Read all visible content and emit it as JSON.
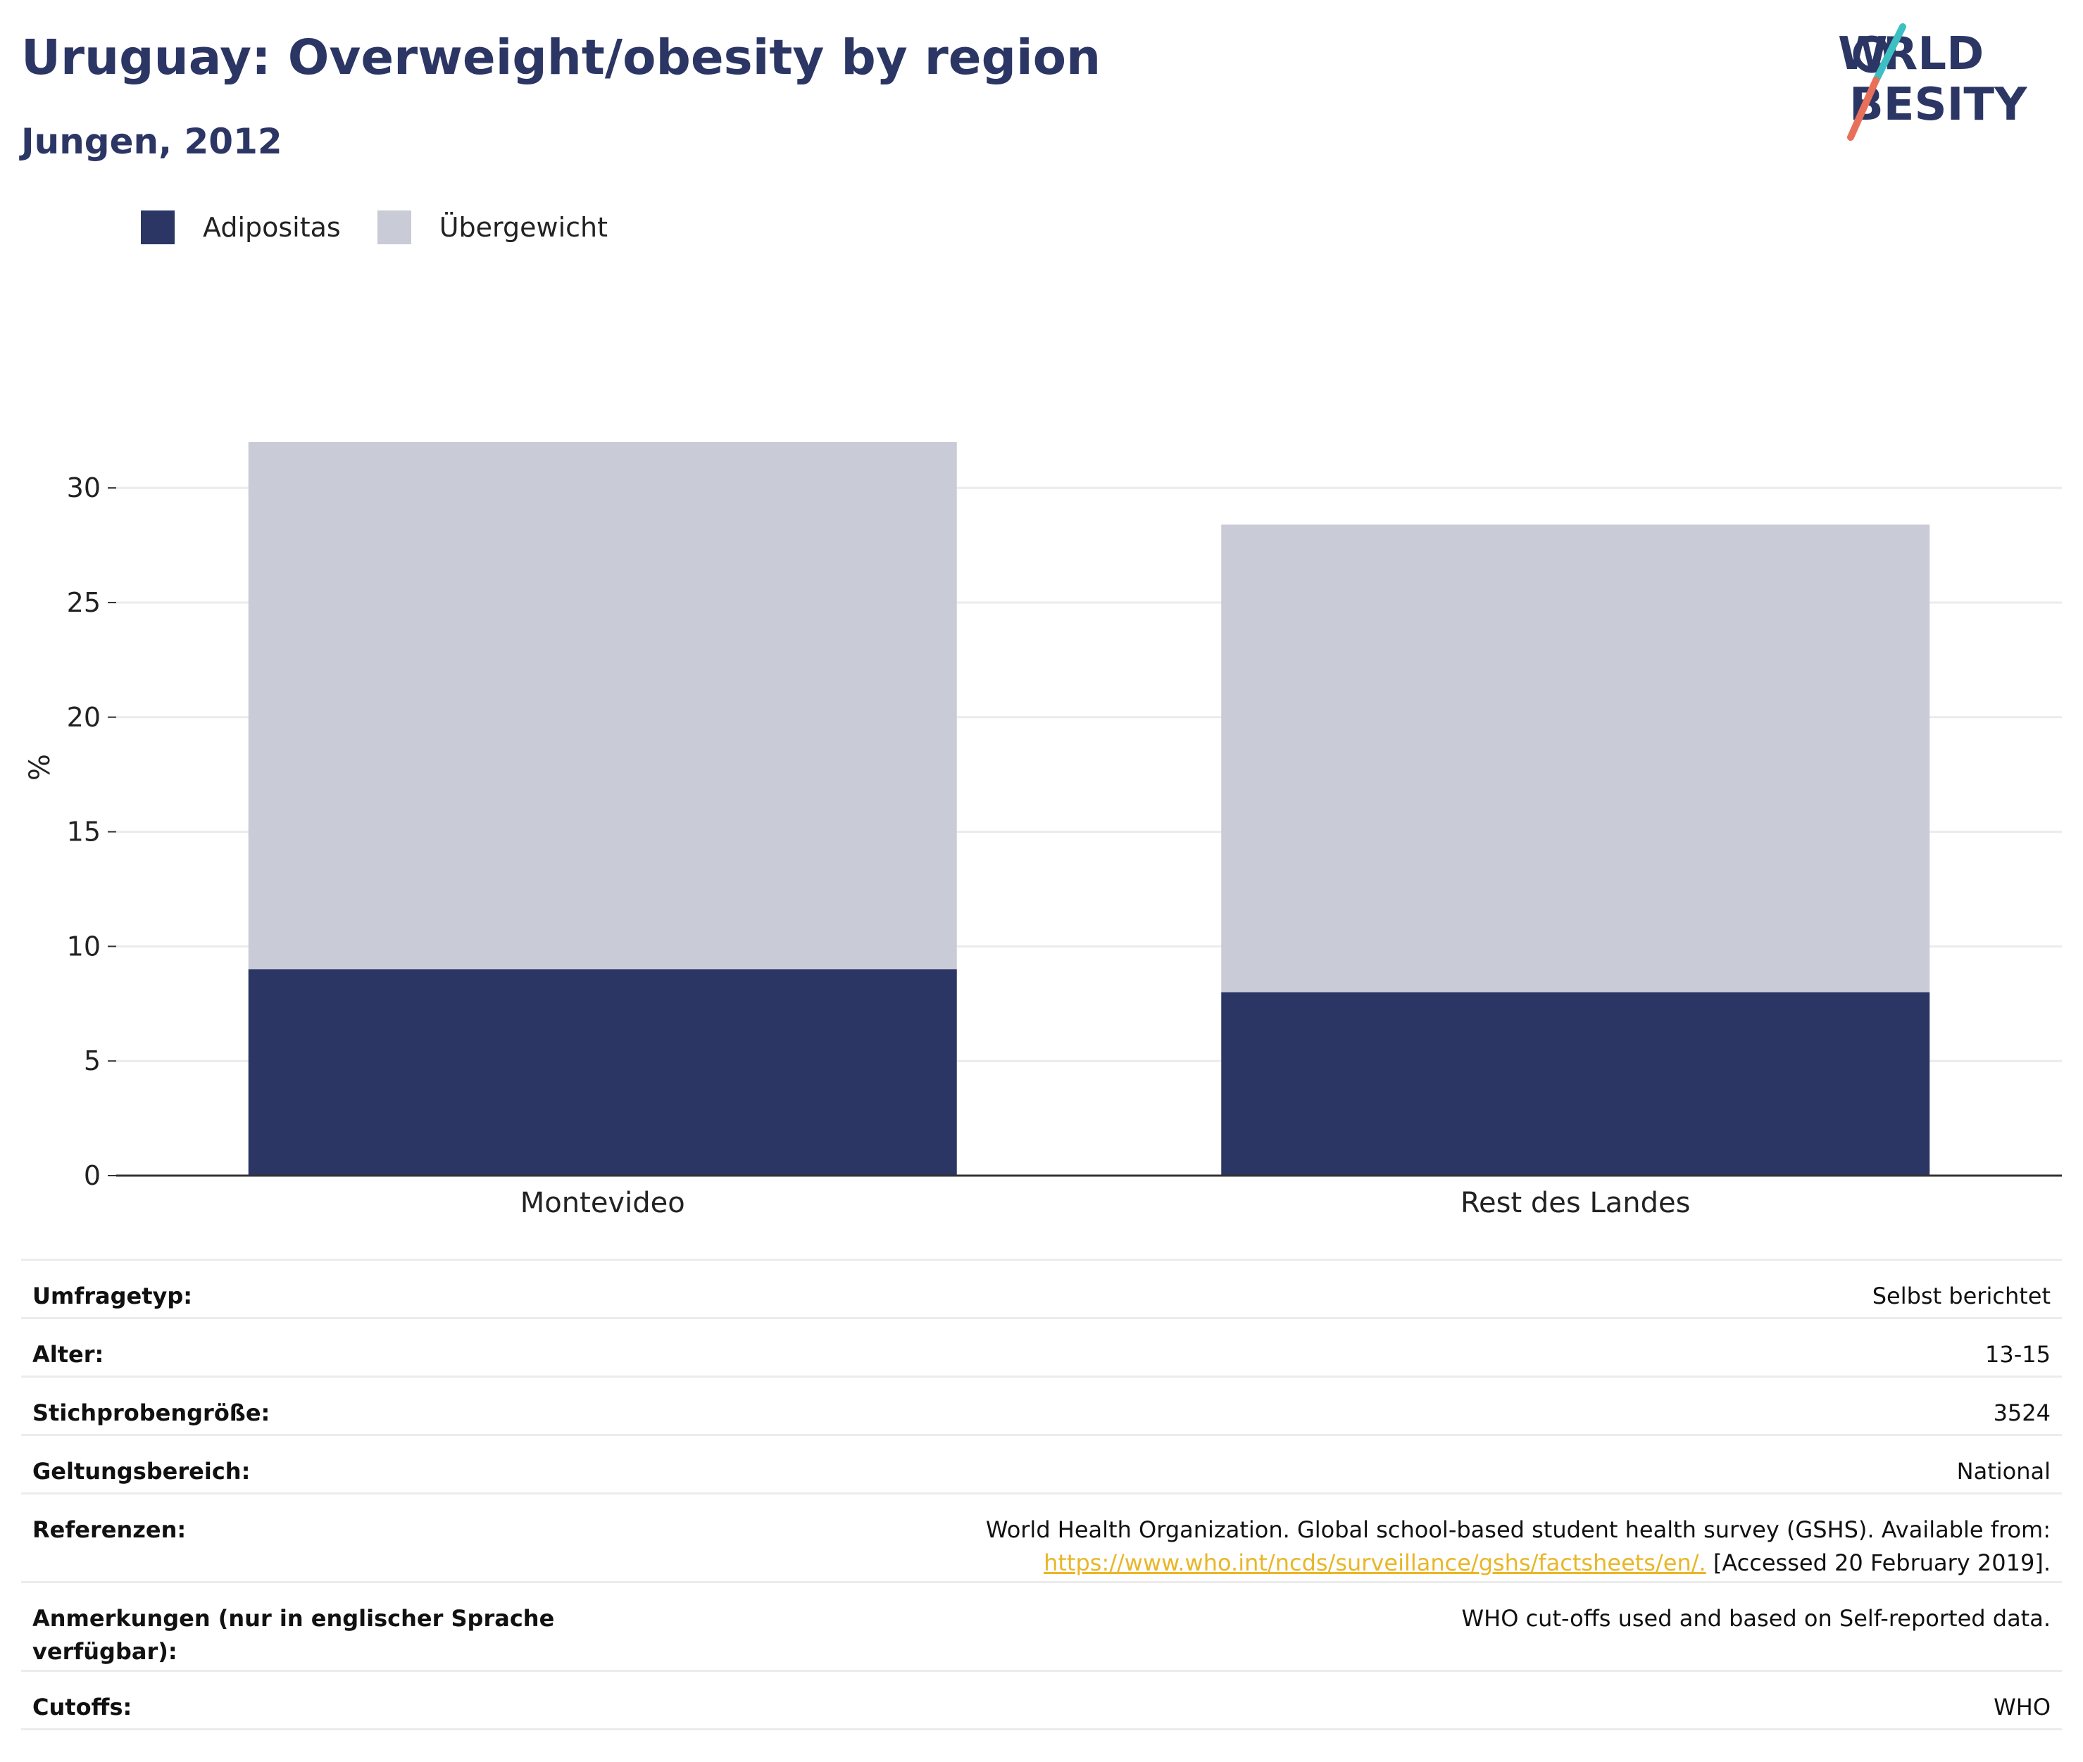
{
  "header": {
    "title": "Uruguay: Overweight/obesity by region",
    "subtitle": "Jungen, 2012"
  },
  "logo": {
    "line1": "WORLD",
    "line2": "OBESITY",
    "brand_navy": "#2b3664",
    "slash_teal": "#3dbfc3",
    "slash_coral": "#e8705a"
  },
  "legend": {
    "items": [
      {
        "label": "Adipositas",
        "color": "#2b3664"
      },
      {
        "label": "Übergewicht",
        "color": "#c9cbd7"
      }
    ]
  },
  "chart_data": {
    "type": "bar",
    "stacked": true,
    "categories": [
      "Montevideo",
      "Rest des Landes"
    ],
    "series": [
      {
        "name": "Adipositas",
        "color": "#2b3664",
        "values": [
          9.0,
          8.0
        ]
      },
      {
        "name": "Übergewicht",
        "color": "#c9cbd7",
        "values": [
          23.0,
          20.4
        ]
      }
    ],
    "totals": [
      32.0,
      28.4
    ],
    "ylabel": "%",
    "xlabel": "",
    "ylim": [
      0,
      32
    ],
    "yticks": [
      0,
      5,
      10,
      15,
      20,
      25,
      30
    ],
    "grid": true,
    "legend_position": "top-left"
  },
  "info": {
    "rows": [
      {
        "label": "Umfragetyp:",
        "value": "Selbst berichtet"
      },
      {
        "label": "Alter:",
        "value": "13-15"
      },
      {
        "label": "Stichprobengröße:",
        "value": "3524"
      },
      {
        "label": "Geltungsbereich:",
        "value": "National"
      }
    ],
    "references": {
      "label": "Referenzen:",
      "line1": "World Health Organization. Global school-based student health survey (GSHS). Available from:",
      "link": "https://www.who.int/ncds/surveillance/gshs/factsheets/en/.",
      "line2_suffix": " [Accessed 20 February 2019]."
    },
    "notes": {
      "label": "Anmerkungen (nur in englischer Sprache verfügbar):",
      "value": "WHO cut-offs used and based on Self-reported data."
    },
    "cutoffs": {
      "label": "Cutoffs:",
      "value": "WHO"
    }
  }
}
